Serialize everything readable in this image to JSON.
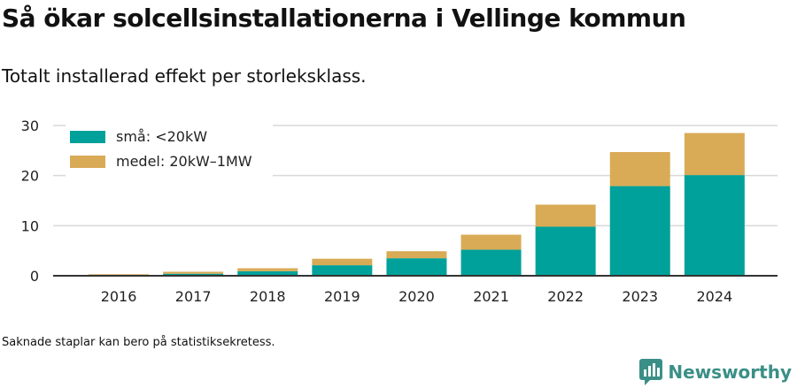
{
  "header": {
    "title": "Så ökar solcellsinstallationerna i Vellinge kommun",
    "subtitle": "Totalt installerad effekt per storleksklass."
  },
  "footer": {
    "note": "Saknade staplar kan bero på statistiksekretess.",
    "brand": "Newsworthy",
    "brand_icon": "newsworthy-logo-icon"
  },
  "colors": {
    "small": "#00a19a",
    "medium": "#d9ab57",
    "grid": "#d9d9d9",
    "axis": "#333333",
    "brand": "#3a8f86"
  },
  "chart_data": {
    "type": "bar",
    "stacked": true,
    "title": "Så ökar solcellsinstallationerna i Vellinge kommun",
    "subtitle": "Totalt installerad effekt per storleksklass.",
    "xlabel": "",
    "ylabel": "",
    "categories": [
      "2016",
      "2017",
      "2018",
      "2019",
      "2020",
      "2021",
      "2022",
      "2023",
      "2024"
    ],
    "series": [
      {
        "name": "små: <20kW",
        "values": [
          0.1,
          0.4,
          0.9,
          2.1,
          3.5,
          5.2,
          9.8,
          17.9,
          20.1
        ]
      },
      {
        "name": "medel: 20kW–1MW",
        "values": [
          0.2,
          0.4,
          0.6,
          1.3,
          1.4,
          3.0,
          4.4,
          6.8,
          8.4
        ]
      }
    ],
    "ylim": [
      0,
      30
    ],
    "yticks": [
      0,
      10,
      20,
      30
    ],
    "grid": true,
    "legend": "top-left"
  }
}
